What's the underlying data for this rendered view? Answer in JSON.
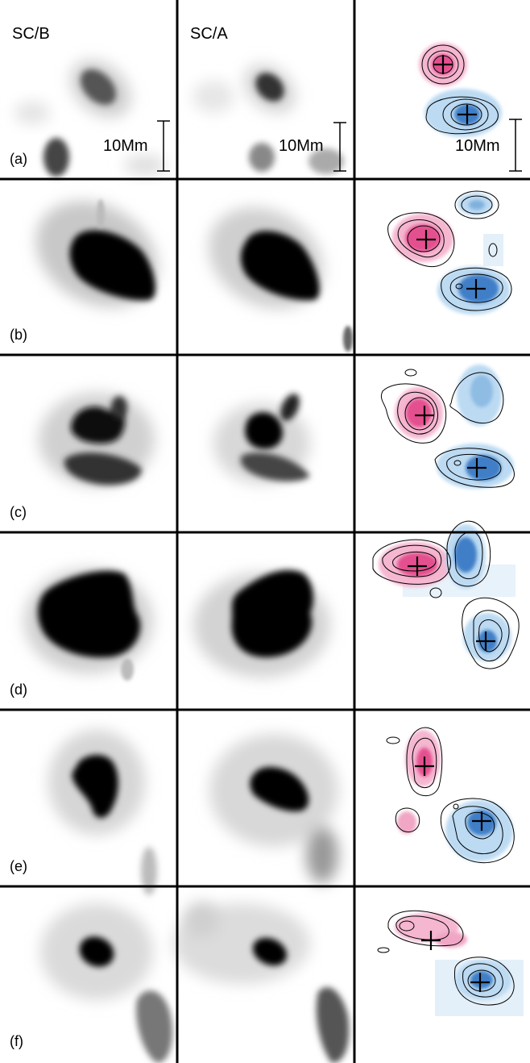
{
  "figure": {
    "column_titles": [
      "SC/B",
      "SC/A"
    ],
    "panel_labels": [
      "(a)",
      "(b)",
      "(c)",
      "(d)",
      "(e)",
      "(f)"
    ],
    "scale_bar_label": "10Mm",
    "colors": {
      "negative_polarity": "#e4508f",
      "negative_polarity_light": "#f5b6d0",
      "positive_polarity": "#3f7fc7",
      "positive_polarity_light": "#bcdaf2",
      "grid_lines": "#000000",
      "contour_outline": "#000000"
    },
    "icons": [
      "centroid-cross-icon",
      "scale-bar-icon"
    ]
  }
}
